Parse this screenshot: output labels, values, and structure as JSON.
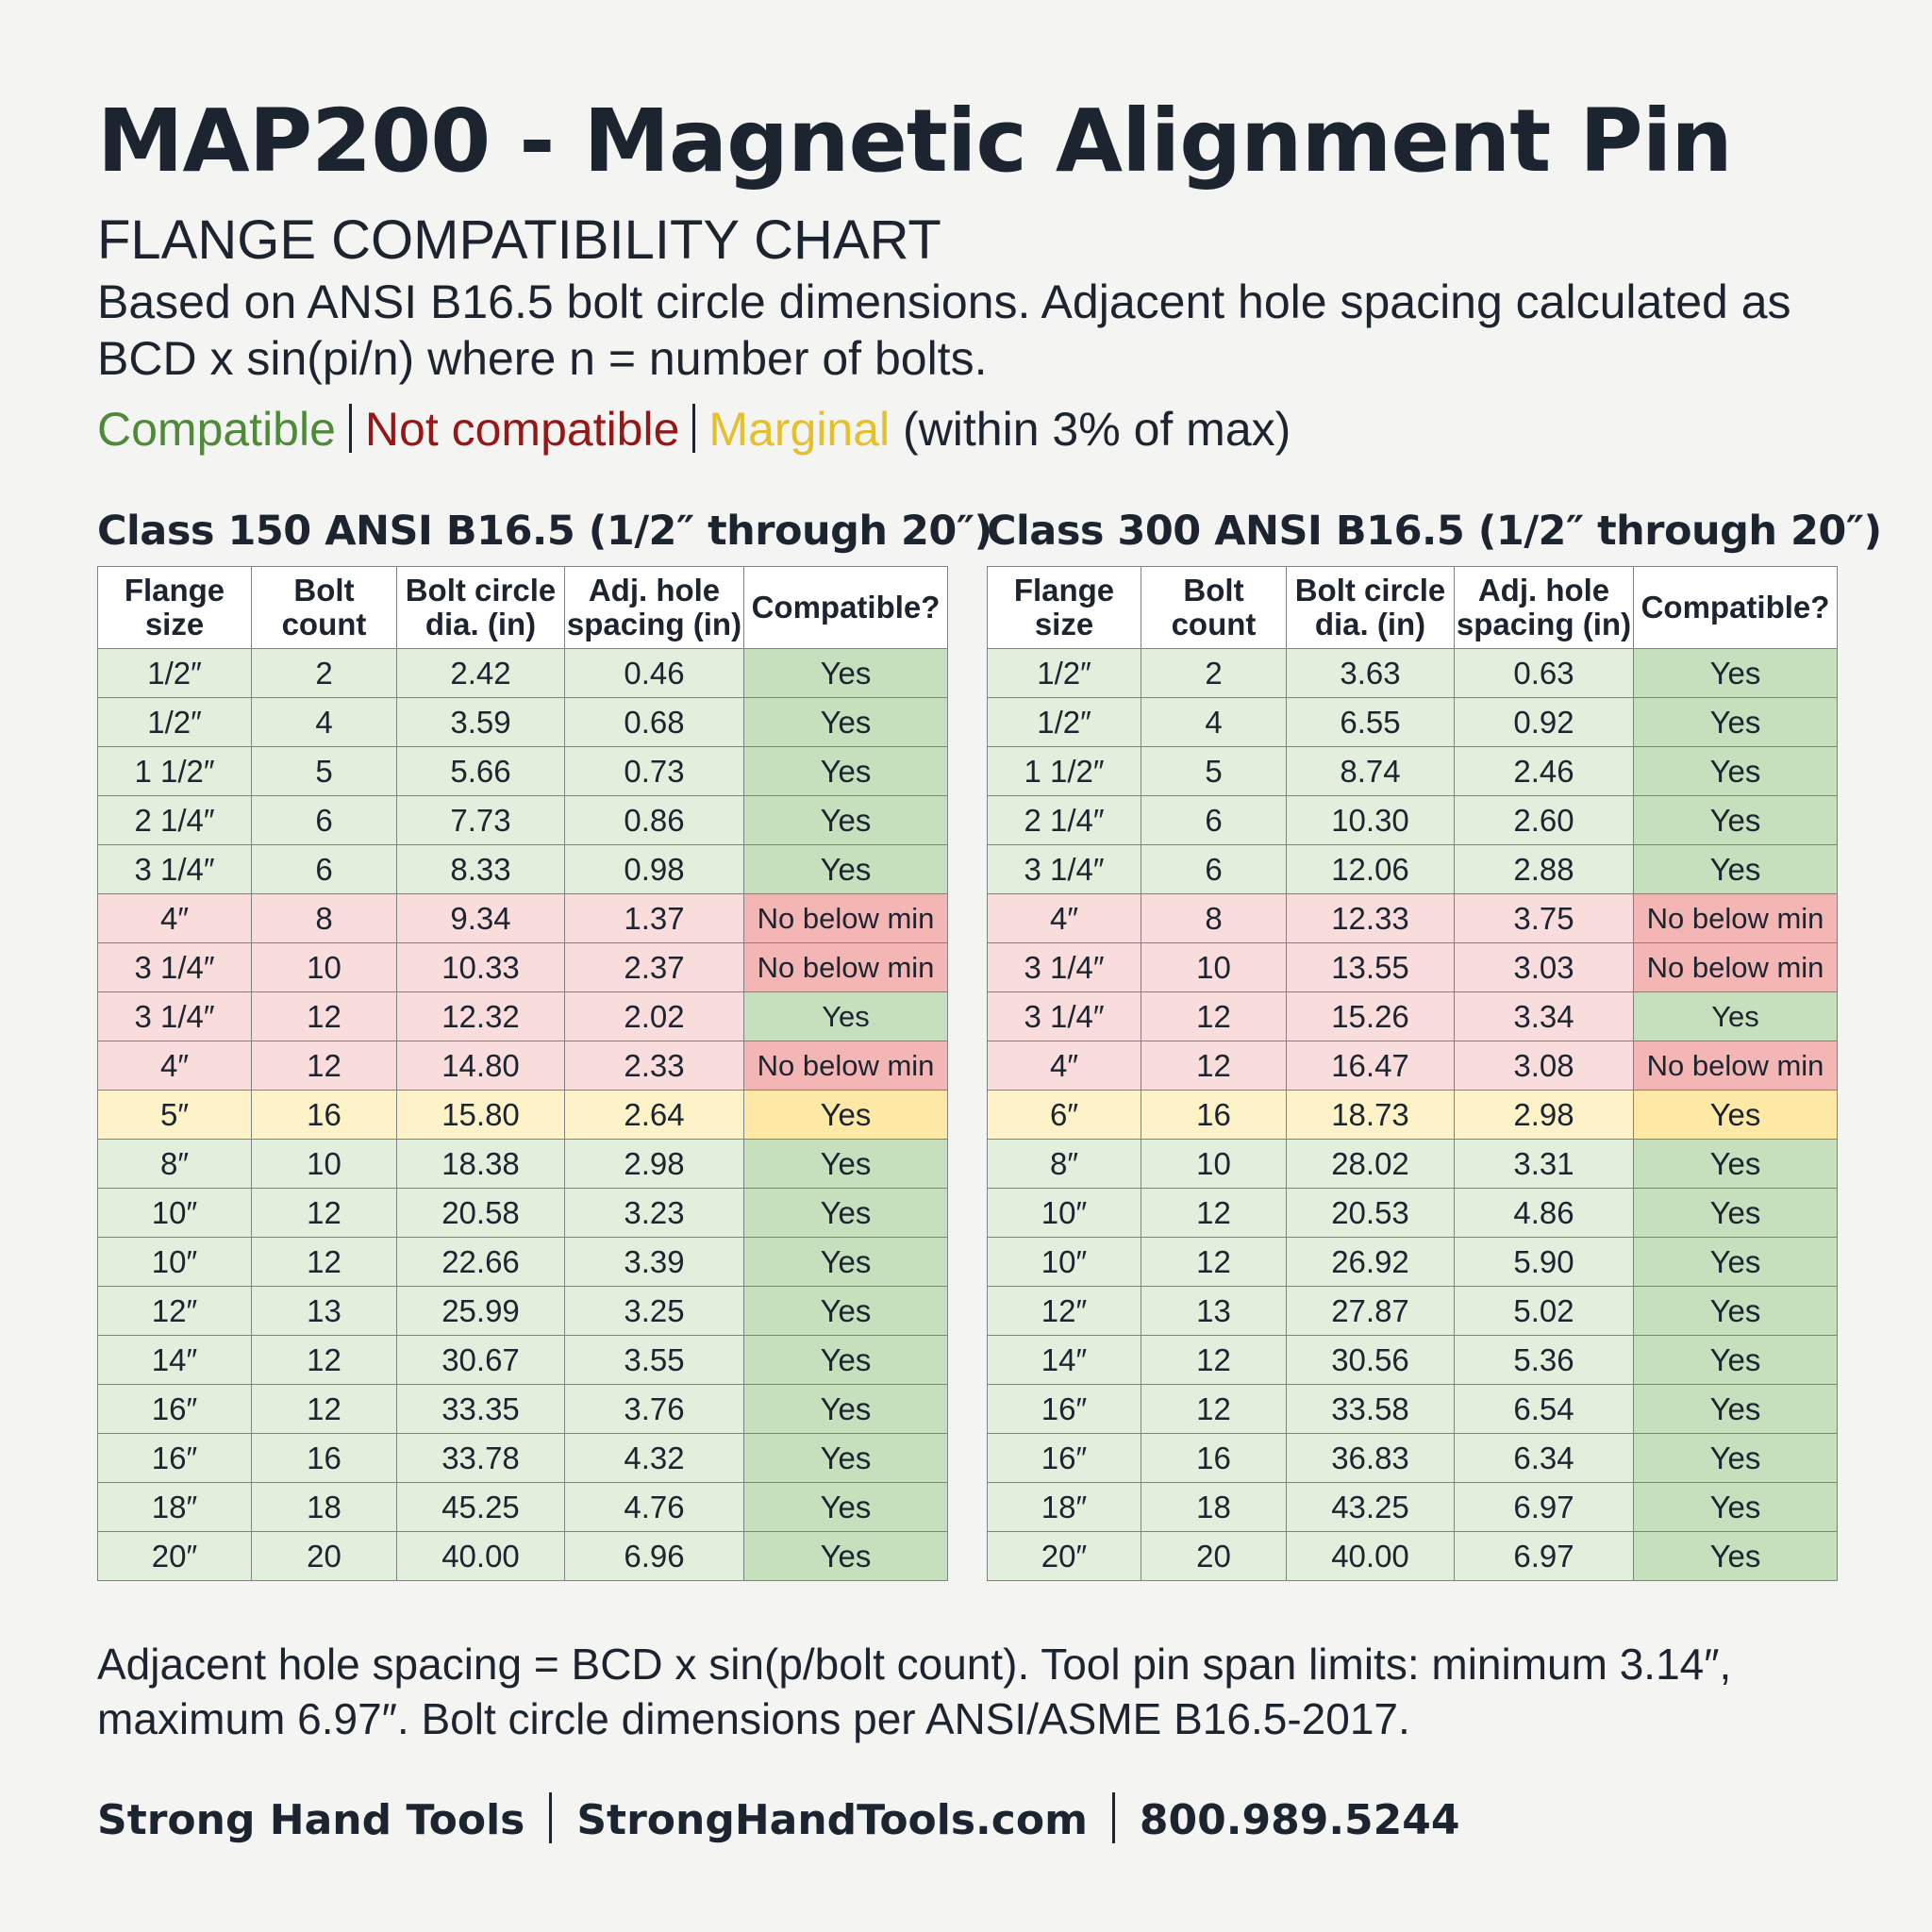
{
  "title": "MAP200 - Magnetic Alignment Pin",
  "subtitle": "FLANGE COMPATIBILITY CHART",
  "description": "Based on ANSI B16.5 bolt circle dimensions. Adjacent hole spacing calculated as BCD x sin(pi/n) where n = number of bolts.",
  "legend": {
    "compatible": "Compatible",
    "not_compatible": "Not compatible",
    "marginal": "Marginal",
    "marginal_note": " (within 3% of max)",
    "colors": {
      "compatible": "#4e8a38",
      "not_compatible": "#951818",
      "marginal": "#e3c02c"
    }
  },
  "columns": [
    "Flange size",
    "Bolt count",
    "Bolt circle dia. (in)",
    "Adj. hole spacing (in)",
    "Compatible?"
  ],
  "tables": [
    {
      "heading": "Class 150 ANSI B16.5 (1/2″ through 20″)",
      "rows": [
        {
          "size": "1/2″",
          "bolts": "2",
          "bcd": "2.42",
          "spacing": "0.46",
          "compatible": "Yes",
          "status": "ok"
        },
        {
          "size": "1/2″",
          "bolts": "4",
          "bcd": "3.59",
          "spacing": "0.68",
          "compatible": "Yes",
          "status": "ok"
        },
        {
          "size": "1 1/2″",
          "bolts": "5",
          "bcd": "5.66",
          "spacing": "0.73",
          "compatible": "Yes",
          "status": "ok"
        },
        {
          "size": "2 1/4″",
          "bolts": "6",
          "bcd": "7.73",
          "spacing": "0.86",
          "compatible": "Yes",
          "status": "ok"
        },
        {
          "size": "3 1/4″",
          "bolts": "6",
          "bcd": "8.33",
          "spacing": "0.98",
          "compatible": "Yes",
          "status": "ok"
        },
        {
          "size": "4″",
          "bolts": "8",
          "bcd": "9.34",
          "spacing": "1.37",
          "compatible": "No below min",
          "status": "no"
        },
        {
          "size": "3 1/4″",
          "bolts": "10",
          "bcd": "10.33",
          "spacing": "2.37",
          "compatible": "No below min",
          "status": "no"
        },
        {
          "size": "3 1/4″",
          "bolts": "12",
          "bcd": "12.32",
          "spacing": "2.02",
          "compatible": "Yes",
          "status": "no-ok"
        },
        {
          "size": "4″",
          "bolts": "12",
          "bcd": "14.80",
          "spacing": "2.33",
          "compatible": "No below min",
          "status": "no"
        },
        {
          "size": "5″",
          "bolts": "16",
          "bcd": "15.80",
          "spacing": "2.64",
          "compatible": "Yes",
          "status": "mg"
        },
        {
          "size": "8″",
          "bolts": "10",
          "bcd": "18.38",
          "spacing": "2.98",
          "compatible": "Yes",
          "status": "ok"
        },
        {
          "size": "10″",
          "bolts": "12",
          "bcd": "20.58",
          "spacing": "3.23",
          "compatible": "Yes",
          "status": "ok"
        },
        {
          "size": "10″",
          "bolts": "12",
          "bcd": "22.66",
          "spacing": "3.39",
          "compatible": "Yes",
          "status": "ok"
        },
        {
          "size": "12″",
          "bolts": "13",
          "bcd": "25.99",
          "spacing": "3.25",
          "compatible": "Yes",
          "status": "ok"
        },
        {
          "size": "14″",
          "bolts": "12",
          "bcd": "30.67",
          "spacing": "3.55",
          "compatible": "Yes",
          "status": "ok"
        },
        {
          "size": "16″",
          "bolts": "12",
          "bcd": "33.35",
          "spacing": "3.76",
          "compatible": "Yes",
          "status": "ok"
        },
        {
          "size": "16″",
          "bolts": "16",
          "bcd": "33.78",
          "spacing": "4.32",
          "compatible": "Yes",
          "status": "ok"
        },
        {
          "size": "18″",
          "bolts": "18",
          "bcd": "45.25",
          "spacing": "4.76",
          "compatible": "Yes",
          "status": "ok"
        },
        {
          "size": "20″",
          "bolts": "20",
          "bcd": "40.00",
          "spacing": "6.96",
          "compatible": "Yes",
          "status": "ok"
        }
      ]
    },
    {
      "heading": "Class 300 ANSI B16.5 (1/2″ through 20″)",
      "rows": [
        {
          "size": "1/2″",
          "bolts": "2",
          "bcd": "3.63",
          "spacing": "0.63",
          "compatible": "Yes",
          "status": "ok"
        },
        {
          "size": "1/2″",
          "bolts": "4",
          "bcd": "6.55",
          "spacing": "0.92",
          "compatible": "Yes",
          "status": "ok"
        },
        {
          "size": "1 1/2″",
          "bolts": "5",
          "bcd": "8.74",
          "spacing": "2.46",
          "compatible": "Yes",
          "status": "ok"
        },
        {
          "size": "2 1/4″",
          "bolts": "6",
          "bcd": "10.30",
          "spacing": "2.60",
          "compatible": "Yes",
          "status": "ok"
        },
        {
          "size": "3 1/4″",
          "bolts": "6",
          "bcd": "12.06",
          "spacing": "2.88",
          "compatible": "Yes",
          "status": "ok"
        },
        {
          "size": "4″",
          "bolts": "8",
          "bcd": "12.33",
          "spacing": "3.75",
          "compatible": "No below min",
          "status": "no"
        },
        {
          "size": "3 1/4″",
          "bolts": "10",
          "bcd": "13.55",
          "spacing": "3.03",
          "compatible": "No below min",
          "status": "no"
        },
        {
          "size": "3 1/4″",
          "bolts": "12",
          "bcd": "15.26",
          "spacing": "3.34",
          "compatible": "Yes",
          "status": "no-ok"
        },
        {
          "size": "4″",
          "bolts": "12",
          "bcd": "16.47",
          "spacing": "3.08",
          "compatible": "No below min",
          "status": "no"
        },
        {
          "size": "6″",
          "bolts": "16",
          "bcd": "18.73",
          "spacing": "2.98",
          "compatible": "Yes",
          "status": "mg"
        },
        {
          "size": "8″",
          "bolts": "10",
          "bcd": "28.02",
          "spacing": "3.31",
          "compatible": "Yes",
          "status": "ok"
        },
        {
          "size": "10″",
          "bolts": "12",
          "bcd": "20.53",
          "spacing": "4.86",
          "compatible": "Yes",
          "status": "ok"
        },
        {
          "size": "10″",
          "bolts": "12",
          "bcd": "26.92",
          "spacing": "5.90",
          "compatible": "Yes",
          "status": "ok"
        },
        {
          "size": "12″",
          "bolts": "13",
          "bcd": "27.87",
          "spacing": "5.02",
          "compatible": "Yes",
          "status": "ok"
        },
        {
          "size": "14″",
          "bolts": "12",
          "bcd": "30.56",
          "spacing": "5.36",
          "compatible": "Yes",
          "status": "ok"
        },
        {
          "size": "16″",
          "bolts": "12",
          "bcd": "33.58",
          "spacing": "6.54",
          "compatible": "Yes",
          "status": "ok"
        },
        {
          "size": "16″",
          "bolts": "16",
          "bcd": "36.83",
          "spacing": "6.34",
          "compatible": "Yes",
          "status": "ok"
        },
        {
          "size": "18″",
          "bolts": "18",
          "bcd": "43.25",
          "spacing": "6.97",
          "compatible": "Yes",
          "status": "ok"
        },
        {
          "size": "20″",
          "bolts": "20",
          "bcd": "40.00",
          "spacing": "6.97",
          "compatible": "Yes",
          "status": "ok"
        }
      ]
    }
  ],
  "footnote": "Adjacent hole spacing = BCD x sin(p/bolt count). Tool pin span limits: minimum 3.14″, maximum 6.97″. Bolt circle dimensions per ANSI/ASME B16.5-2017.",
  "footer": {
    "brand": "Strong Hand Tools",
    "website": "StrongHandTools.com",
    "phone": "800.989.5244"
  }
}
